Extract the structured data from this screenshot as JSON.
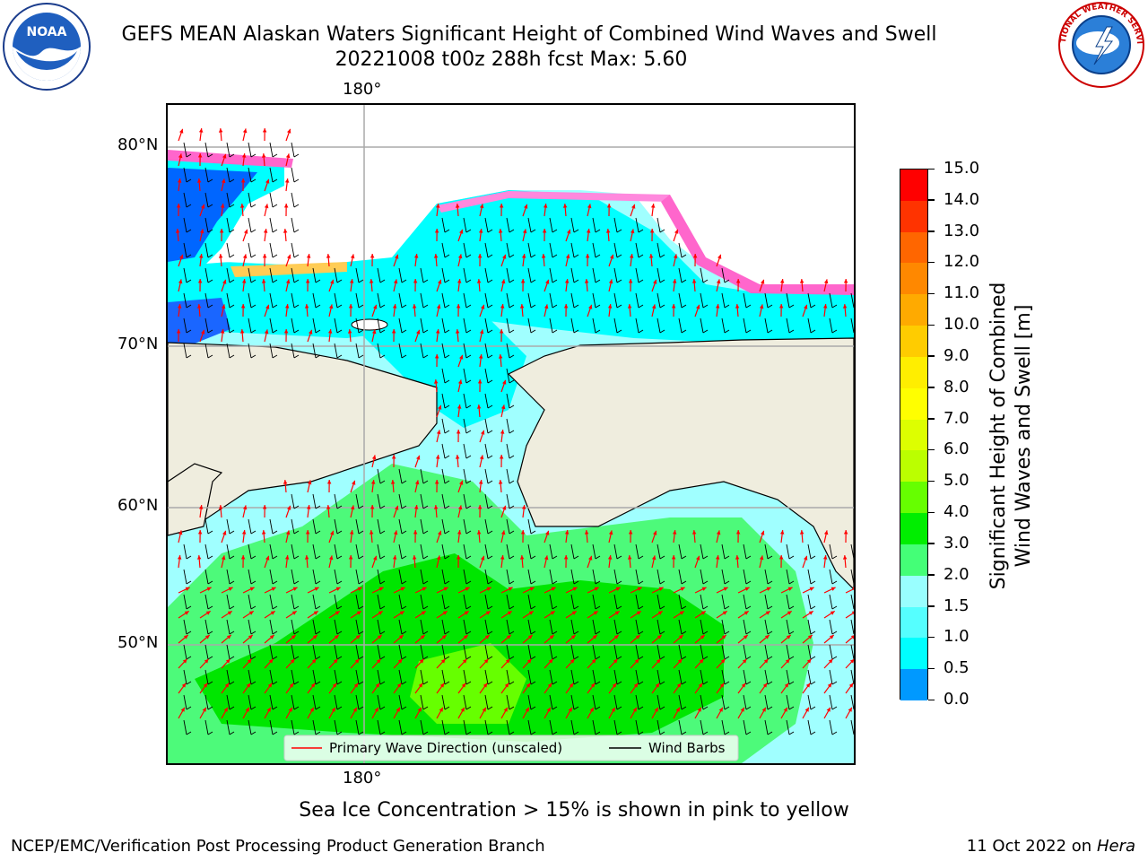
{
  "header": {
    "title_line1": "GEFS MEAN Alaskan Waters Significant Height of Combined Wind Waves and Swell",
    "title_line2": "20221008 t00z 288h fcst   Max: 5.60"
  },
  "logos": {
    "left": {
      "name": "noaa-logo",
      "text": "NOAA"
    },
    "right": {
      "name": "nws-logo",
      "text": "NATIONAL WEATHER SERVICE"
    }
  },
  "map": {
    "lon_labels": [
      "180°",
      "180°"
    ],
    "lat_labels": [
      "80°N",
      "70°N",
      "60°N",
      "50°N"
    ],
    "colors": {
      "land": "#efedde",
      "ocean_low": "#00ffff",
      "grid": "#aaaaaa"
    },
    "legend": {
      "wave_direction": "Primary Wave Direction (unscaled)",
      "wind_barbs": "Wind Barbs",
      "wave_color": "#ff0000",
      "barb_color": "#000000"
    }
  },
  "colorbar": {
    "label_line1": "Significant Height of Combined",
    "label_line2": "Wind Waves and Swell [m]",
    "ticks": [
      "15.0",
      "14.0",
      "13.0",
      "12.0",
      "11.0",
      "10.0",
      "9.0",
      "8.0",
      "7.0",
      "6.0",
      "5.0",
      "4.0",
      "3.0",
      "2.0",
      "1.5",
      "1.0",
      "0.5",
      "0.0"
    ],
    "colors": [
      "#ff0000",
      "#ff3300",
      "#ff6600",
      "#ff8800",
      "#ffaa00",
      "#ffcc00",
      "#ffee00",
      "#ffff00",
      "#ddff00",
      "#bbff00",
      "#66ff00",
      "#00ee00",
      "#44ff77",
      "#99ffff",
      "#55ffff",
      "#00ffff",
      "#0099ff",
      "#0044ff"
    ]
  },
  "note": "Sea Ice Concentration > 15% is shown in pink to yellow",
  "footer": {
    "left": "NCEP/EMC/Verification Post Processing Product Generation Branch",
    "right_date": "11 Oct 2022 on ",
    "right_host": "Hera"
  }
}
